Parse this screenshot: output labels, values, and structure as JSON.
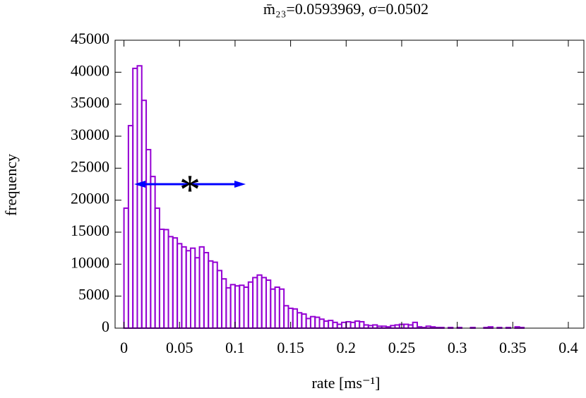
{
  "chart_data": {
    "type": "histogram",
    "title": "m̄₂₃=0.0593969, σ=0.0502",
    "x_label": "rate [ms⁻¹]",
    "y_label": "frequency",
    "color": "#9400d3",
    "bins": [
      0,
      0.004,
      0.008,
      0.012,
      0.016,
      0.02,
      0.024,
      0.028,
      0.032,
      0.036,
      0.04,
      0.044,
      0.048,
      0.052,
      0.056,
      0.06,
      0.064,
      0.068,
      0.072,
      0.076,
      0.08,
      0.084,
      0.088,
      0.092,
      0.096,
      0.1,
      0.104,
      0.108,
      0.112,
      0.116,
      0.12,
      0.124,
      0.128,
      0.132,
      0.136,
      0.14,
      0.144,
      0.148,
      0.152,
      0.156,
      0.16,
      0.164,
      0.168,
      0.172,
      0.176,
      0.18,
      0.184,
      0.188,
      0.192,
      0.196,
      0.2,
      0.204,
      0.208,
      0.212,
      0.216,
      0.22,
      0.224,
      0.228,
      0.232,
      0.236,
      0.24,
      0.244,
      0.248,
      0.252,
      0.256,
      0.26,
      0.264,
      0.268,
      0.272,
      0.276,
      0.28,
      0.284,
      0.288,
      0.292,
      0.296,
      0.3,
      0.304,
      0.308,
      0.312,
      0.316,
      0.32,
      0.324,
      0.328,
      0.332,
      0.336,
      0.34,
      0.344,
      0.348,
      0.352,
      0.356,
      0.36
    ],
    "values": [
      18750,
      31650,
      40600,
      41000,
      35600,
      27900,
      23700,
      18750,
      15450,
      15400,
      14300,
      14100,
      13200,
      12700,
      12100,
      12500,
      11000,
      12700,
      11800,
      10500,
      10300,
      9000,
      7700,
      6300,
      6800,
      6600,
      6700,
      6400,
      7200,
      7900,
      8300,
      7900,
      7500,
      6100,
      6400,
      6100,
      3500,
      3100,
      3000,
      2400,
      2200,
      1500,
      1800,
      1700,
      1400,
      1100,
      1200,
      900,
      600,
      900,
      1000,
      900,
      1100,
      1000,
      500,
      400,
      500,
      300,
      300,
      200,
      400,
      500,
      600,
      600,
      500,
      900,
      200,
      100,
      300,
      200,
      100,
      100,
      0,
      100,
      0,
      100,
      0,
      0,
      100,
      0,
      0,
      100,
      200,
      0,
      100,
      0,
      100,
      0,
      200,
      100
    ],
    "xlim": [
      -0.008,
      0.414
    ],
    "ylim": [
      0,
      45000
    ],
    "xticks": [
      0,
      0.05,
      0.1,
      0.15,
      0.2,
      0.25,
      0.3,
      0.35,
      0.4
    ],
    "yticks": [
      0,
      5000,
      10000,
      15000,
      20000,
      25000,
      30000,
      35000,
      40000,
      45000
    ],
    "annotation": {
      "mean": 0.0593969,
      "sigma": 0.0502,
      "y": 22500,
      "label": "*",
      "color": "#0000ff"
    }
  }
}
